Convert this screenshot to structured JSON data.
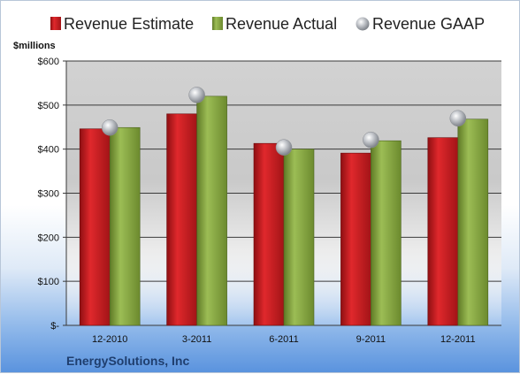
{
  "company": "EnergySolutions, Inc",
  "unit_label": "$millions",
  "colors": {
    "estimate": "#c0191c",
    "actual": "#7f9e3b",
    "gaap": "#b9bcc2",
    "plot_bg": "#c8c8c8"
  },
  "chart_data": {
    "type": "bar",
    "categories": [
      "12-2010",
      "3-2011",
      "6-2011",
      "9-2011",
      "12-2011"
    ],
    "series": [
      {
        "name": "Revenue Estimate",
        "type": "bar",
        "values": [
          446,
          480,
          413,
          391,
          426
        ]
      },
      {
        "name": "Revenue Actual",
        "type": "bar",
        "values": [
          449,
          520,
          400,
          419,
          468
        ]
      },
      {
        "name": "Revenue GAAP",
        "type": "scatter",
        "values": [
          449,
          523,
          404,
          421,
          470
        ]
      }
    ],
    "ylabel": "$millions",
    "ylim": [
      0,
      600
    ],
    "yticks": [
      0,
      100,
      200,
      300,
      400,
      500,
      600
    ],
    "ytick_labels": [
      "$-",
      "$100",
      "$200",
      "$300",
      "$400",
      "$500",
      "$600"
    ],
    "grid": true,
    "legend": "top"
  }
}
